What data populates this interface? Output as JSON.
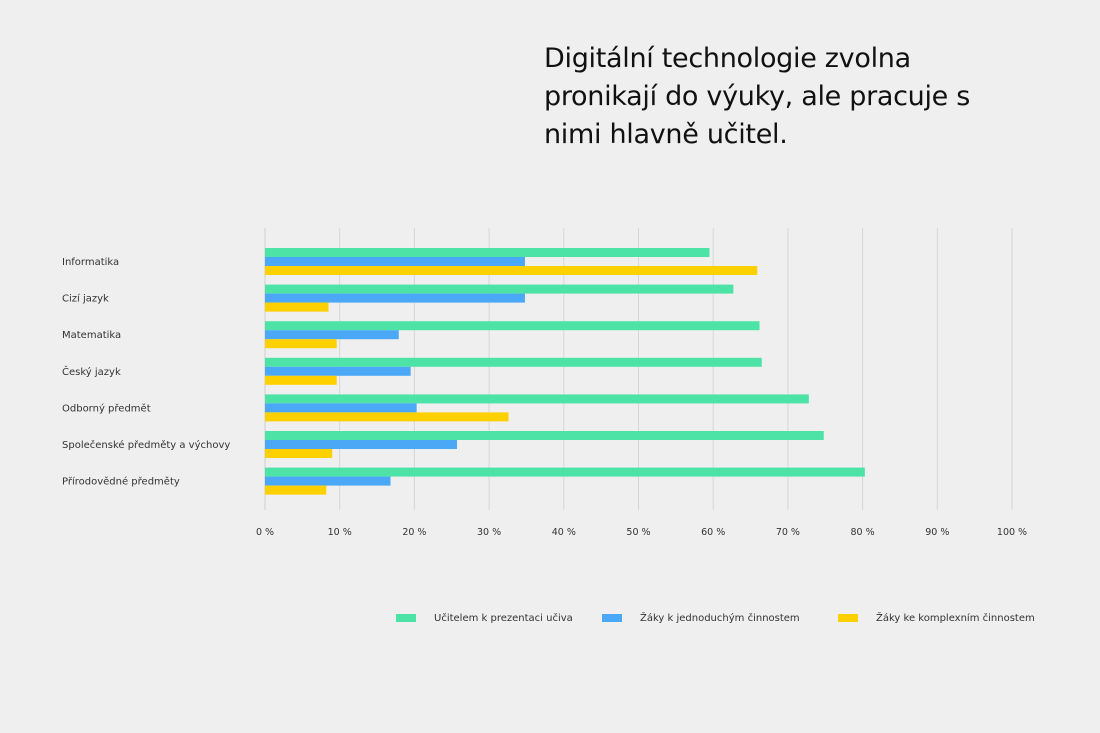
{
  "title": "Digitální technologie zvolna pronikají do výuky, ale pracuje s nimi hlavně učitel.",
  "chart_data": {
    "type": "bar",
    "orientation": "horizontal",
    "categories": [
      "Informatika",
      "Cizí jazyk",
      "Matematika",
      "Český jazyk",
      "Odborný předmět",
      "Společenské předměty a výchovy",
      "Přírodovědné předměty"
    ],
    "series": [
      {
        "name": "Učitelem k prezentaci učiva",
        "color": "#4de3a6",
        "values": [
          59.5,
          62.7,
          66.2,
          66.5,
          72.8,
          74.8,
          80.3
        ]
      },
      {
        "name": "Žáky k jednoduchým činnostem",
        "color": "#4aa8f7",
        "values": [
          34.8,
          34.8,
          17.9,
          19.5,
          20.3,
          25.7,
          16.8
        ]
      },
      {
        "name": "Žáky ke komplexním činnostem",
        "color": "#ffd000",
        "values": [
          65.9,
          8.5,
          9.6,
          9.6,
          32.6,
          9.0,
          8.2
        ]
      }
    ],
    "xlim": [
      0,
      100
    ],
    "xticks": [
      "0 %",
      "10 %",
      "20 %",
      "30 %",
      "40 %",
      "50 %",
      "60 %",
      "70 %",
      "80 %",
      "90 %",
      "100 %"
    ],
    "grid": "vertical",
    "legend_position": "bottom-right"
  }
}
